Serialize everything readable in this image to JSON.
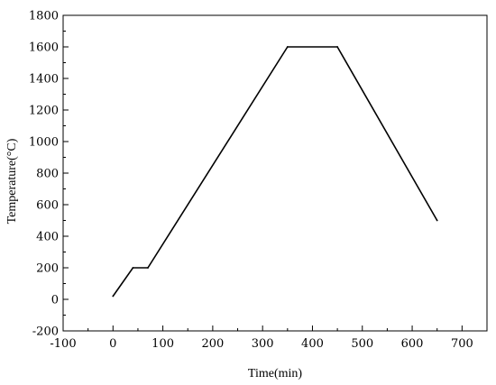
{
  "chart_data": {
    "type": "line",
    "title": "",
    "xlabel": "Time(min)",
    "ylabel": "Temperature(°C)",
    "xlim": [
      -100,
      750
    ],
    "ylim": [
      -200,
      1800
    ],
    "x_ticks": [
      -100,
      0,
      100,
      200,
      300,
      400,
      500,
      600,
      700
    ],
    "y_ticks": [
      -200,
      0,
      200,
      400,
      600,
      800,
      1000,
      1200,
      1400,
      1600,
      1800
    ],
    "x_tick_labels": [
      "-100",
      "0",
      "100",
      "200",
      "300",
      "400",
      "500",
      "600",
      "700"
    ],
    "y_tick_labels": [
      "-200",
      "0",
      "200",
      "400",
      "600",
      "800",
      "1000",
      "1200",
      "1400",
      "1600",
      "1800"
    ],
    "grid": false,
    "legend": "none",
    "series": [
      {
        "x": [
          0,
          40,
          70,
          350,
          450,
          650
        ],
        "y": [
          20,
          200,
          200,
          1600,
          1600,
          500
        ]
      }
    ],
    "line_color": "#000000"
  }
}
